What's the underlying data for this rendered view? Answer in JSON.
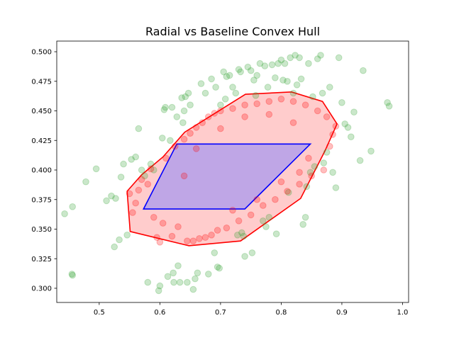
{
  "chart_data": {
    "type": "scatter",
    "title": "Radial vs Baseline Convex Hull",
    "xlabel": "",
    "ylabel": "",
    "xlim": [
      0.43,
      1.01
    ],
    "ylim": [
      0.288,
      0.509
    ],
    "x_ticks": [
      {
        "value": 0.5,
        "label": "0.5"
      },
      {
        "value": 0.6,
        "label": "0.6"
      },
      {
        "value": 0.7,
        "label": "0.7"
      },
      {
        "value": 0.8,
        "label": "0.8"
      },
      {
        "value": 0.9,
        "label": "0.9"
      },
      {
        "value": 1.0,
        "label": "1.0"
      }
    ],
    "y_ticks": [
      {
        "value": 0.3,
        "label": "0.300"
      },
      {
        "value": 0.325,
        "label": "0.325"
      },
      {
        "value": 0.35,
        "label": "0.350"
      },
      {
        "value": 0.375,
        "label": "0.375"
      },
      {
        "value": 0.4,
        "label": "0.400"
      },
      {
        "value": 0.425,
        "label": "0.425"
      },
      {
        "value": 0.45,
        "label": "0.450"
      },
      {
        "value": 0.475,
        "label": "0.475"
      },
      {
        "value": 0.5,
        "label": "0.500"
      }
    ],
    "grid": false,
    "legend": false,
    "colors": {
      "green_points": "#2ca02c",
      "red_points": "#ff0000",
      "radial_hull_fill": "#ff0000",
      "radial_hull_edge": "#ff0000",
      "baseline_hull_fill": "#8080ff",
      "baseline_hull_edge": "#0000ff"
    },
    "series": [
      {
        "type": "scatter",
        "color": "#2ca02c",
        "opacity": 0.25,
        "points": [
          [
            0.443,
            0.363
          ],
          [
            0.456,
            0.369
          ],
          [
            0.455,
            0.312
          ],
          [
            0.456,
            0.311
          ],
          [
            0.478,
            0.39
          ],
          [
            0.495,
            0.401
          ],
          [
            0.512,
            0.374
          ],
          [
            0.52,
            0.378
          ],
          [
            0.525,
            0.335
          ],
          [
            0.527,
            0.376
          ],
          [
            0.533,
            0.341
          ],
          [
            0.536,
            0.394
          ],
          [
            0.546,
            0.345
          ],
          [
            0.54,
            0.405
          ],
          [
            0.553,
            0.409
          ],
          [
            0.56,
            0.411
          ],
          [
            0.565,
            0.435
          ],
          [
            0.57,
            0.4
          ],
          [
            0.575,
            0.395
          ],
          [
            0.58,
            0.305
          ],
          [
            0.585,
            0.405
          ],
          [
            0.59,
            0.4
          ],
          [
            0.598,
            0.298
          ],
          [
            0.6,
            0.302
          ],
          [
            0.604,
            0.427
          ],
          [
            0.607,
            0.451
          ],
          [
            0.609,
            0.453
          ],
          [
            0.613,
            0.31
          ],
          [
            0.617,
            0.425
          ],
          [
            0.62,
            0.453
          ],
          [
            0.622,
            0.313
          ],
          [
            0.623,
            0.305
          ],
          [
            0.628,
            0.445
          ],
          [
            0.63,
            0.319
          ],
          [
            0.633,
            0.305
          ],
          [
            0.636,
            0.461
          ],
          [
            0.638,
            0.44
          ],
          [
            0.64,
            0.45
          ],
          [
            0.642,
            0.462
          ],
          [
            0.645,
            0.305
          ],
          [
            0.647,
            0.465
          ],
          [
            0.65,
            0.455
          ],
          [
            0.655,
            0.299
          ],
          [
            0.658,
            0.308
          ],
          [
            0.662,
            0.313
          ],
          [
            0.668,
            0.473
          ],
          [
            0.675,
            0.465
          ],
          [
            0.68,
            0.312
          ],
          [
            0.685,
            0.477
          ],
          [
            0.69,
            0.33
          ],
          [
            0.692,
            0.47
          ],
          [
            0.695,
            0.318
          ],
          [
            0.698,
            0.317
          ],
          [
            0.7,
            0.455
          ],
          [
            0.705,
            0.483
          ],
          [
            0.708,
            0.46
          ],
          [
            0.71,
            0.479
          ],
          [
            0.715,
            0.48
          ],
          [
            0.72,
            0.47
          ],
          [
            0.725,
            0.465
          ],
          [
            0.728,
            0.345
          ],
          [
            0.73,
            0.485
          ],
          [
            0.733,
            0.483
          ],
          [
            0.735,
            0.347
          ],
          [
            0.738,
            0.344
          ],
          [
            0.74,
            0.327
          ],
          [
            0.745,
            0.487
          ],
          [
            0.75,
            0.484
          ],
          [
            0.752,
            0.33
          ],
          [
            0.755,
            0.476
          ],
          [
            0.758,
            0.463
          ],
          [
            0.76,
            0.48
          ],
          [
            0.765,
            0.49
          ],
          [
            0.77,
            0.357
          ],
          [
            0.773,
            0.488
          ],
          [
            0.775,
            0.352
          ],
          [
            0.778,
            0.47
          ],
          [
            0.78,
            0.36
          ],
          [
            0.785,
            0.489
          ],
          [
            0.79,
            0.478
          ],
          [
            0.792,
            0.346
          ],
          [
            0.795,
            0.49
          ],
          [
            0.8,
            0.493
          ],
          [
            0.803,
            0.476
          ],
          [
            0.806,
            0.49
          ],
          [
            0.81,
            0.475
          ],
          [
            0.812,
            0.381
          ],
          [
            0.815,
            0.495
          ],
          [
            0.82,
            0.465
          ],
          [
            0.823,
            0.497
          ],
          [
            0.826,
            0.472
          ],
          [
            0.83,
            0.495
          ],
          [
            0.833,
            0.477
          ],
          [
            0.836,
            0.354
          ],
          [
            0.84,
            0.36
          ],
          [
            0.842,
            0.386
          ],
          [
            0.845,
            0.49
          ],
          [
            0.848,
            0.398
          ],
          [
            0.852,
            0.462
          ],
          [
            0.855,
            0.403
          ],
          [
            0.86,
            0.494
          ],
          [
            0.865,
            0.497
          ],
          [
            0.868,
            0.465
          ],
          [
            0.87,
            0.406
          ],
          [
            0.875,
            0.415
          ],
          [
            0.88,
            0.47
          ],
          [
            0.885,
            0.398
          ],
          [
            0.89,
            0.385
          ],
          [
            0.895,
            0.495
          ],
          [
            0.9,
            0.457
          ],
          [
            0.905,
            0.439
          ],
          [
            0.91,
            0.436
          ],
          [
            0.915,
            0.428
          ],
          [
            0.92,
            0.449
          ],
          [
            0.93,
            0.408
          ],
          [
            0.935,
            0.484
          ],
          [
            0.948,
            0.416
          ],
          [
            0.975,
            0.457
          ],
          [
            0.978,
            0.454
          ]
        ]
      },
      {
        "type": "scatter",
        "color": "#ff0000",
        "opacity": 0.25,
        "points": [
          [
            0.55,
            0.38
          ],
          [
            0.555,
            0.364
          ],
          [
            0.56,
            0.372
          ],
          [
            0.565,
            0.383
          ],
          [
            0.57,
            0.392
          ],
          [
            0.58,
            0.388
          ],
          [
            0.585,
            0.401
          ],
          [
            0.59,
            0.36
          ],
          [
            0.595,
            0.343
          ],
          [
            0.6,
            0.339
          ],
          [
            0.605,
            0.355
          ],
          [
            0.61,
            0.41
          ],
          [
            0.62,
            0.344
          ],
          [
            0.625,
            0.42
          ],
          [
            0.63,
            0.352
          ],
          [
            0.64,
            0.426
          ],
          [
            0.645,
            0.34
          ],
          [
            0.65,
            0.431
          ],
          [
            0.655,
            0.34
          ],
          [
            0.66,
            0.436
          ],
          [
            0.665,
            0.342
          ],
          [
            0.67,
            0.44
          ],
          [
            0.675,
            0.343
          ],
          [
            0.68,
            0.445
          ],
          [
            0.685,
            0.345
          ],
          [
            0.69,
            0.448
          ],
          [
            0.695,
            0.349
          ],
          [
            0.7,
            0.45
          ],
          [
            0.71,
            0.351
          ],
          [
            0.72,
            0.452
          ],
          [
            0.73,
            0.357
          ],
          [
            0.74,
            0.455
          ],
          [
            0.75,
            0.362
          ],
          [
            0.76,
            0.456
          ],
          [
            0.77,
            0.37
          ],
          [
            0.78,
            0.458
          ],
          [
            0.79,
            0.375
          ],
          [
            0.8,
            0.46
          ],
          [
            0.81,
            0.382
          ],
          [
            0.82,
            0.458
          ],
          [
            0.83,
            0.388
          ],
          [
            0.84,
            0.455
          ],
          [
            0.85,
            0.395
          ],
          [
            0.86,
            0.45
          ],
          [
            0.87,
            0.4
          ],
          [
            0.875,
            0.445
          ],
          [
            0.88,
            0.42
          ],
          [
            0.885,
            0.43
          ],
          [
            0.89,
            0.437
          ],
          [
            0.64,
            0.395
          ],
          [
            0.66,
            0.418
          ],
          [
            0.7,
            0.435
          ],
          [
            0.74,
            0.445
          ],
          [
            0.78,
            0.447
          ],
          [
            0.82,
            0.44
          ],
          [
            0.845,
            0.41
          ],
          [
            0.83,
            0.398
          ],
          [
            0.8,
            0.39
          ],
          [
            0.76,
            0.375
          ],
          [
            0.72,
            0.366
          ]
        ]
      }
    ],
    "hulls": [
      {
        "name": "",
        "role": "radial",
        "fill": "#ff0000",
        "fill_opacity": 0.2,
        "edge": "#ff0000",
        "points": [
          [
            0.546,
            0.382
          ],
          [
            0.551,
            0.348
          ],
          [
            0.575,
            0.345
          ],
          [
            0.648,
            0.336
          ],
          [
            0.733,
            0.34
          ],
          [
            0.832,
            0.376
          ],
          [
            0.872,
            0.416
          ],
          [
            0.892,
            0.439
          ],
          [
            0.868,
            0.458
          ],
          [
            0.817,
            0.466
          ],
          [
            0.741,
            0.464
          ],
          [
            0.641,
            0.432
          ],
          [
            0.605,
            0.411
          ],
          [
            0.57,
            0.396
          ]
        ]
      },
      {
        "name": "",
        "role": "baseline",
        "fill": "#8080ff",
        "fill_opacity": 0.5,
        "edge": "#0000ff",
        "points": [
          [
            0.573,
            0.367
          ],
          [
            0.74,
            0.367
          ],
          [
            0.848,
            0.422
          ],
          [
            0.628,
            0.422
          ]
        ]
      }
    ]
  }
}
